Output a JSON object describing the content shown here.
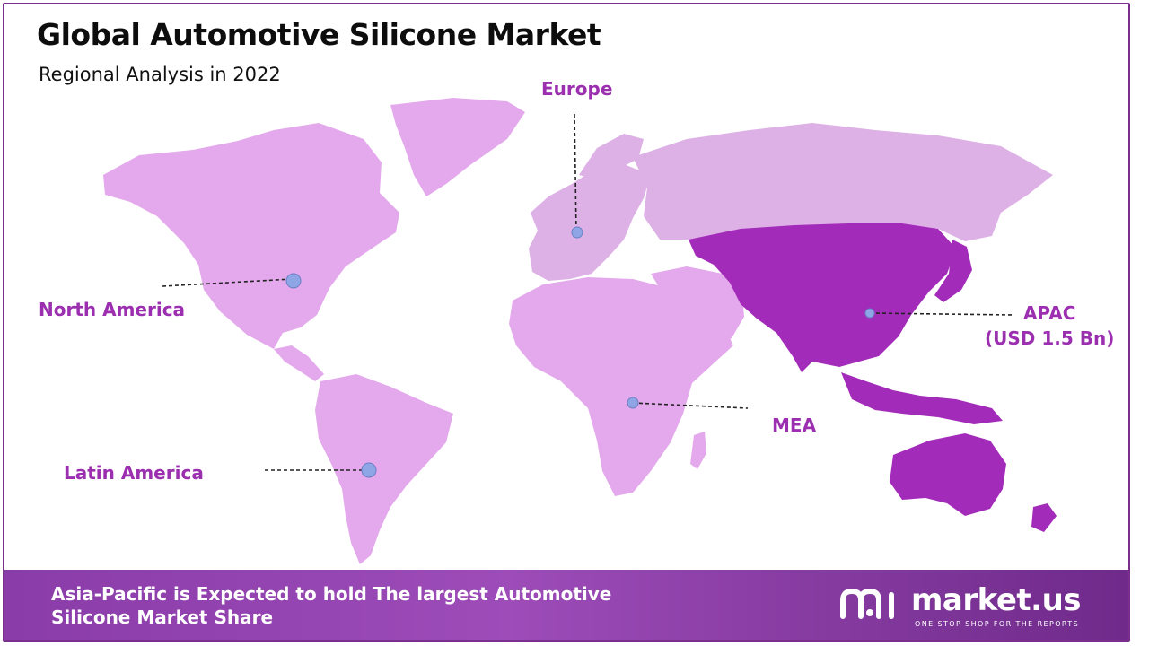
{
  "header": {
    "title": "Global Automotive Silicone Market",
    "subtitle": "Regional Analysis in 2022"
  },
  "regions": {
    "europe": "Europe",
    "north_america": "North America",
    "latin_america": "Latin America",
    "mea": "MEA",
    "apac": "APAC",
    "apac_value": "(USD 1.5 Bn)"
  },
  "footer": {
    "line1": "Asia-Pacific is Expected to hold The largest Automotive",
    "line2": "Silicone Market Share"
  },
  "brand": {
    "name": "market.us",
    "tagline": "ONE STOP SHOP FOR THE REPORTS"
  },
  "colors": {
    "land": "#e4a9ec",
    "land_alt": "#ddb0e6",
    "highlight_apac": "#a32bb9",
    "label": "#9b2fb0",
    "footer": "#8a3ca8",
    "marker": "#8fa6e6"
  }
}
